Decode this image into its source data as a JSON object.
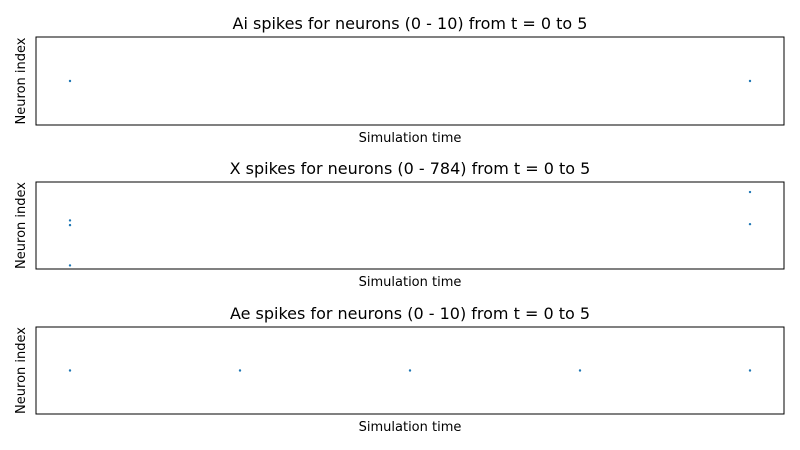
{
  "chart_data": [
    {
      "type": "scatter",
      "title": "Ai spikes for neurons (0 - 10) from t = 0 to 5",
      "xlabel": "Simulation time",
      "ylabel": "Neuron index",
      "xlim": [
        -0.2,
        4.2
      ],
      "ylim": [
        4.5,
        7.5
      ],
      "grid": false,
      "series": [
        {
          "color": "#1f77b4",
          "x": [
            0,
            4
          ],
          "y": [
            6,
            6
          ]
        }
      ]
    },
    {
      "type": "scatter",
      "title": "X spikes for neurons (0 - 784) from t = 0 to 5",
      "xlabel": "Simulation time",
      "ylabel": "Neuron index",
      "xlim": [
        -0.2,
        4.2
      ],
      "ylim": [
        180,
        640
      ],
      "grid": false,
      "series": [
        {
          "color": "#1f77b4",
          "x": [
            0,
            0,
            0,
            4,
            4
          ],
          "y": [
            437,
            412,
            199,
            587,
            417
          ]
        }
      ]
    },
    {
      "type": "scatter",
      "title": "Ae spikes for neurons (0 - 10) from t = 0 to 5",
      "xlabel": "Simulation time",
      "ylabel": "Neuron index",
      "xlim": [
        -0.2,
        4.2
      ],
      "ylim": [
        -0.5,
        1.5
      ],
      "grid": false,
      "series": [
        {
          "color": "#1f77b4",
          "x": [
            0,
            1,
            2,
            3,
            4
          ],
          "y": [
            0.5,
            0.5,
            0.5,
            0.5,
            0.5
          ]
        }
      ]
    }
  ]
}
